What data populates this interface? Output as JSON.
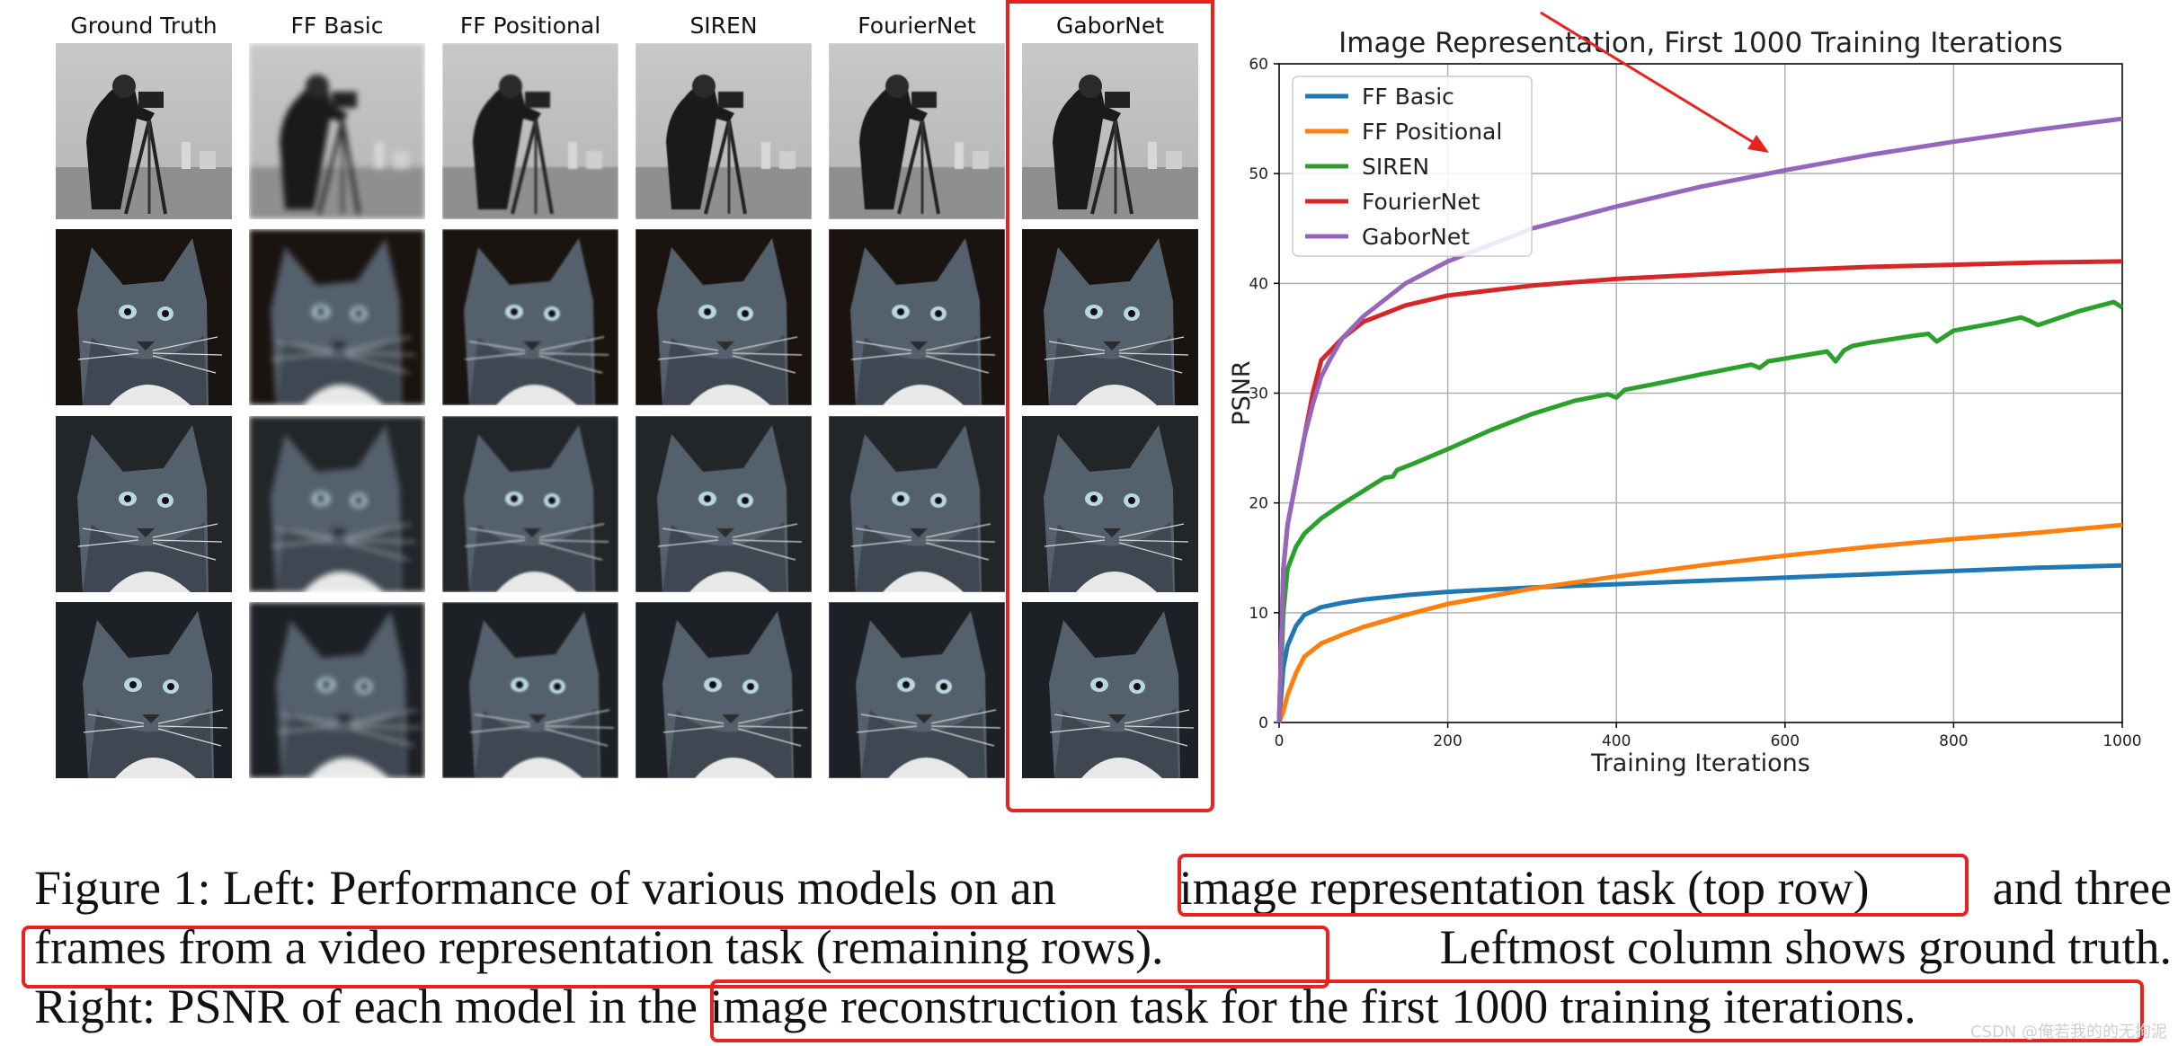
{
  "figure": {
    "columns": [
      "Ground Truth",
      "FF Basic",
      "FF Positional",
      "SIREN",
      "FourierNet",
      "GaborNet"
    ],
    "rows": [
      "cameraman",
      "cat-frame-1",
      "cat-frame-2",
      "cat-frame-3"
    ],
    "highlight_color": "#e8231f"
  },
  "chart_data": {
    "type": "line",
    "title": "Image Representation, First 1000 Training Iterations",
    "xlabel": "Training Iterations",
    "ylabel": "PSNR",
    "xlim": [
      0,
      1000
    ],
    "ylim": [
      0,
      60
    ],
    "xticks": [
      0,
      200,
      400,
      600,
      800,
      1000
    ],
    "yticks": [
      0,
      10,
      20,
      30,
      40,
      50,
      60
    ],
    "grid": true,
    "legend": "top-left",
    "series": [
      {
        "name": "FF Basic",
        "color": "#1f77b4",
        "x": [
          0,
          5,
          10,
          20,
          30,
          50,
          75,
          100,
          150,
          200,
          300,
          400,
          500,
          600,
          700,
          800,
          900,
          1000
        ],
        "y": [
          0,
          5,
          7,
          8.8,
          9.8,
          10.5,
          10.9,
          11.2,
          11.6,
          11.9,
          12.3,
          12.6,
          12.9,
          13.2,
          13.5,
          13.8,
          14.1,
          14.3
        ]
      },
      {
        "name": "FF Positional",
        "color": "#ff7f0e",
        "x": [
          0,
          5,
          10,
          20,
          30,
          50,
          75,
          100,
          150,
          200,
          300,
          400,
          500,
          600,
          700,
          800,
          900,
          1000
        ],
        "y": [
          0,
          1,
          2.5,
          4.5,
          6,
          7.2,
          8,
          8.7,
          9.8,
          10.8,
          12.2,
          13.3,
          14.3,
          15.2,
          16,
          16.7,
          17.3,
          18
        ]
      },
      {
        "name": "SIREN",
        "color": "#2ca02c",
        "x": [
          0,
          5,
          10,
          20,
          30,
          50,
          75,
          100,
          125,
          135,
          140,
          160,
          200,
          250,
          300,
          350,
          390,
          400,
          410,
          450,
          500,
          560,
          570,
          580,
          650,
          660,
          670,
          680,
          700,
          750,
          770,
          780,
          800,
          850,
          880,
          890,
          900,
          950,
          990,
          1000
        ],
        "y": [
          0,
          10,
          14,
          16,
          17.2,
          18.6,
          19.9,
          21.1,
          22.3,
          22.4,
          23.0,
          23.6,
          24.9,
          26.6,
          28.1,
          29.3,
          29.9,
          29.6,
          30.3,
          30.9,
          31.7,
          32.6,
          32.3,
          32.9,
          33.8,
          32.9,
          33.9,
          34.3,
          34.6,
          35.2,
          35.4,
          34.7,
          35.7,
          36.4,
          36.9,
          36.6,
          36.2,
          37.5,
          38.3,
          37.8
        ]
      },
      {
        "name": "FourierNet",
        "color": "#d62728",
        "x": [
          0,
          5,
          10,
          20,
          30,
          40,
          50,
          60,
          75,
          100,
          150,
          200,
          300,
          400,
          500,
          600,
          700,
          800,
          900,
          1000
        ],
        "y": [
          0,
          14,
          18,
          22,
          26,
          30,
          33,
          33.8,
          35,
          36.5,
          38,
          38.9,
          39.8,
          40.4,
          40.8,
          41.2,
          41.5,
          41.7,
          41.9,
          42
        ]
      },
      {
        "name": "GaborNet",
        "color": "#9467bd",
        "x": [
          0,
          5,
          10,
          20,
          30,
          40,
          50,
          60,
          75,
          100,
          150,
          200,
          300,
          400,
          500,
          600,
          700,
          800,
          900,
          1000
        ],
        "y": [
          0,
          14,
          18,
          22,
          26,
          29,
          31.5,
          33,
          35,
          37,
          40,
          42,
          45,
          47,
          48.8,
          50.3,
          51.7,
          52.9,
          54,
          55
        ]
      }
    ]
  },
  "caption": {
    "line1_a": "Figure 1: Left: Performance of various models on an",
    "line1_b": "image representation task (top row)",
    "line1_c": "and three",
    "line2_a": "frames from a video representation task (remaining rows).",
    "line2_b": "Leftmost column shows ground truth.",
    "line3_a": "Right: PSNR of each model in t",
    "line3_b": "he image reconstruction task for the first 1000 training iterations."
  },
  "watermark": "CSDN @俺若我的的无拘泥"
}
